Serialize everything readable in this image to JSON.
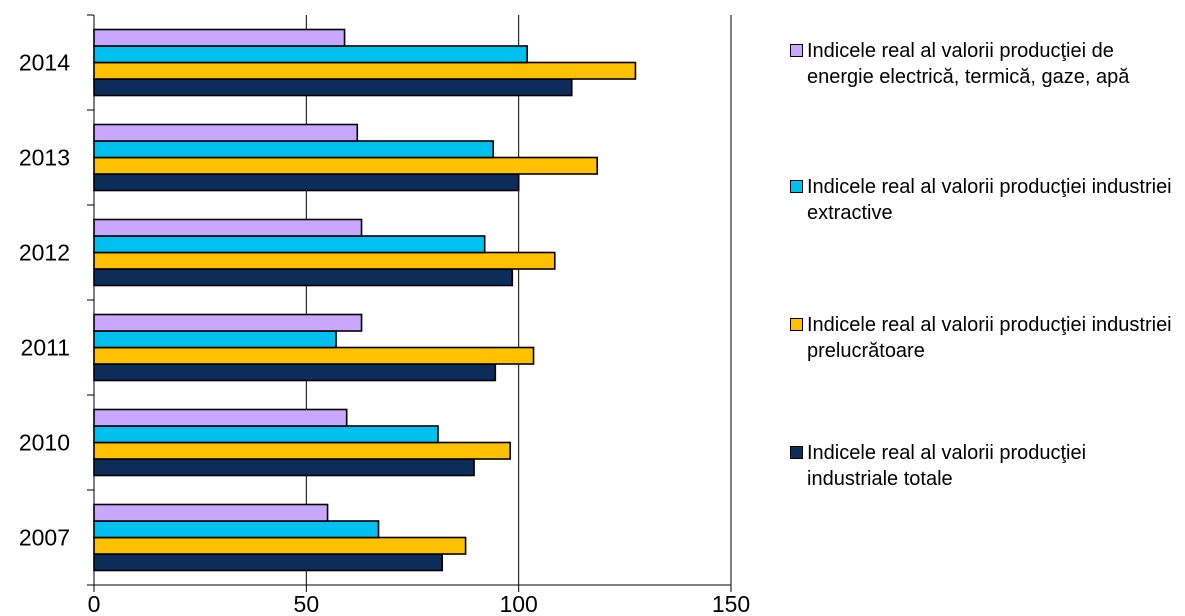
{
  "chart_data": {
    "type": "bar",
    "orientation": "horizontal",
    "categories": [
      "2007",
      "2010",
      "2011",
      "2012",
      "2013",
      "2014"
    ],
    "series": [
      {
        "name": "Indicele real al valorii producţiei industriale totale",
        "color": "#0c2d5a",
        "values": [
          82,
          89.5,
          94.5,
          98.5,
          100,
          112.5
        ]
      },
      {
        "name": "Indicele real al valorii producţiei industriei prelucrătoare",
        "color": "#ffc000",
        "values": [
          87.5,
          98,
          103.5,
          108.5,
          118.5,
          127.5
        ]
      },
      {
        "name": "Indicele real al valorii producţiei industriei extractive",
        "color": "#00c0f0",
        "values": [
          67,
          81,
          57,
          92,
          94,
          102
        ]
      },
      {
        "name": "Indicele real al valorii producţiei de energie electrică, termică, gaze, apă",
        "color": "#c9a7ff",
        "values": [
          55,
          59.5,
          63,
          63,
          62,
          59
        ]
      }
    ],
    "legend_order": [
      3,
      2,
      1,
      0
    ],
    "xlim": [
      0,
      150
    ],
    "xticks": [
      0,
      50,
      100,
      150
    ],
    "grid": "vertical",
    "legend": "right",
    "title": "",
    "xlabel": "",
    "ylabel": ""
  },
  "legend": {
    "item_0": "Indicele real al valorii producţiei de energie electrică, termică, gaze, apă",
    "item_1": "Indicele real al valorii producţiei industriei extractive",
    "item_2": "Indicele real al valorii producţiei industriei prelucrătoare",
    "item_3": "Indicele real al valorii producţiei industriale totale"
  }
}
